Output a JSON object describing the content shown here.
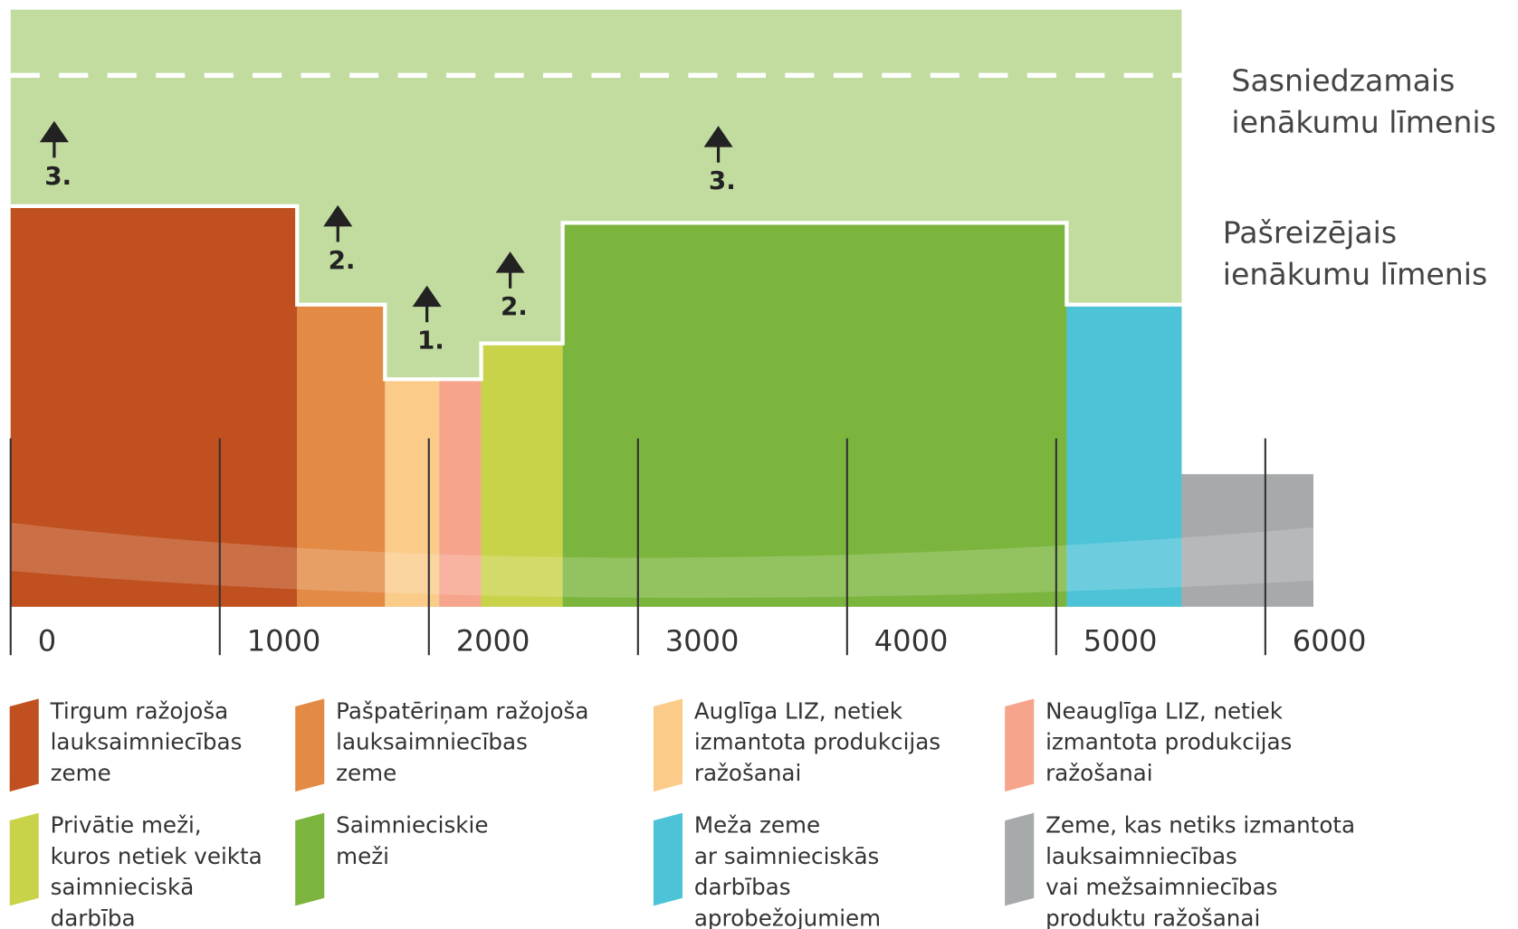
{
  "chart_data": {
    "type": "variwide",
    "xlim": [
      0,
      6230
    ],
    "xticks": [
      0,
      1000,
      2000,
      3000,
      4000,
      5000,
      6000
    ],
    "ylim": [
      0,
      100
    ],
    "background_color": "#c2dca0",
    "segments": [
      {
        "name": [
          "Tirgum ražojoša",
          "lauksaimniecības",
          "zeme"
        ],
        "color": "#c0501f",
        "x": [
          0,
          1370
        ],
        "value": 67.1
      },
      {
        "name": [
          "Pašpatēriņam ražojoša",
          "lauksaimniecības",
          "zeme"
        ],
        "color": "#e38a45",
        "x": [
          1370,
          1790
        ],
        "value": 50.6
      },
      {
        "name": [
          "Auglīga LIZ, netiek",
          "izmantota produkcijas",
          "ražošanai"
        ],
        "color": "#fbcb8a",
        "x": [
          1790,
          2050
        ],
        "value": 38.1
      },
      {
        "name": [
          "Neauglīga LIZ, netiek",
          "izmantota produkcijas",
          "ražošanai"
        ],
        "color": "#f7a48d",
        "x": [
          2050,
          2250
        ],
        "value": 38.1
      },
      {
        "name": [
          "Privātie meži,",
          "kuros netiek veikta",
          "saimnieciskā",
          "darbība"
        ],
        "color": "#c8d34a",
        "x": [
          2250,
          2640
        ],
        "value": 44.1
      },
      {
        "name": [
          "Saimnieciskie",
          "meži"
        ],
        "color": "#7cb53e",
        "x": [
          2640,
          5050
        ],
        "value": 64.3
      },
      {
        "name": [
          "Meža zeme",
          "ar saimnieciskās",
          "darbības",
          "aprobežojumiem"
        ],
        "color": "#4dc3d7",
        "x": [
          5050,
          5600
        ],
        "value": 50.6
      },
      {
        "name": [
          "Zeme, kas netiks izmantota",
          "lauksaimniecības",
          "vai mežsaimniecības",
          "produktu ražošanai"
        ],
        "color": "#a7aaab",
        "x": [
          5600,
          6230
        ],
        "value": 22.2
      }
    ],
    "levels": [
      {
        "label": [
          "Sasniedzamais",
          "ienākumu līmenis"
        ],
        "value": 89
      },
      {
        "label": [
          "Pašreizējais",
          "ienākumu līmenis"
        ]
      }
    ],
    "annotations": [
      "3.",
      "2.",
      "1.",
      "2.",
      "3."
    ]
  }
}
